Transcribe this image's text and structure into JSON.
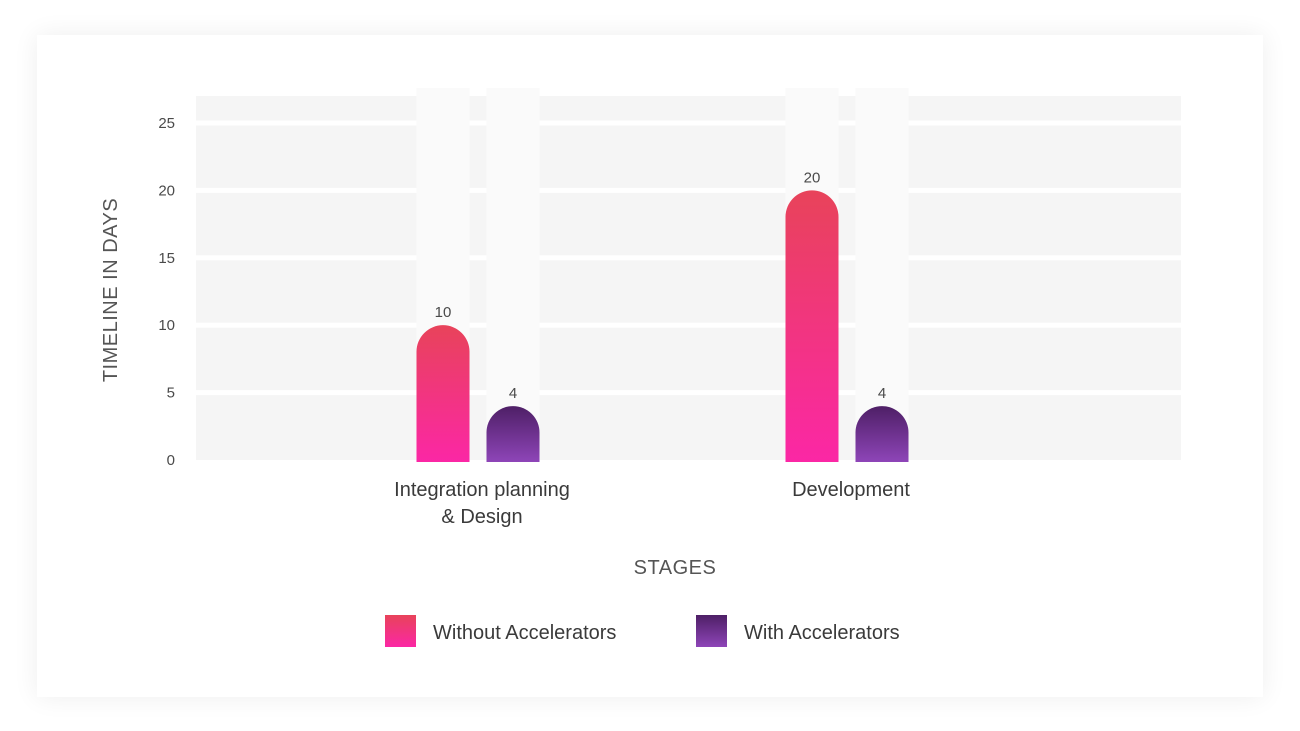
{
  "chart_data": {
    "type": "bar",
    "title": "",
    "xlabel": "STAGES",
    "ylabel": "TIMELINE IN DAYS",
    "ylim": [
      0,
      27
    ],
    "yticks": [
      0,
      5,
      10,
      15,
      20,
      25
    ],
    "categories": [
      "Integration planning|& Design",
      "Development"
    ],
    "series": [
      {
        "name": "Without Accelerators",
        "values": [
          10,
          20
        ],
        "color_top": "#e8435a",
        "color_bottom": "#fb27a5"
      },
      {
        "name": "With Accelerators",
        "values": [
          4,
          4
        ],
        "color_top": "#4e1f66",
        "color_bottom": "#8e45b8"
      }
    ],
    "legend_position": "bottom-center",
    "grid": true
  }
}
